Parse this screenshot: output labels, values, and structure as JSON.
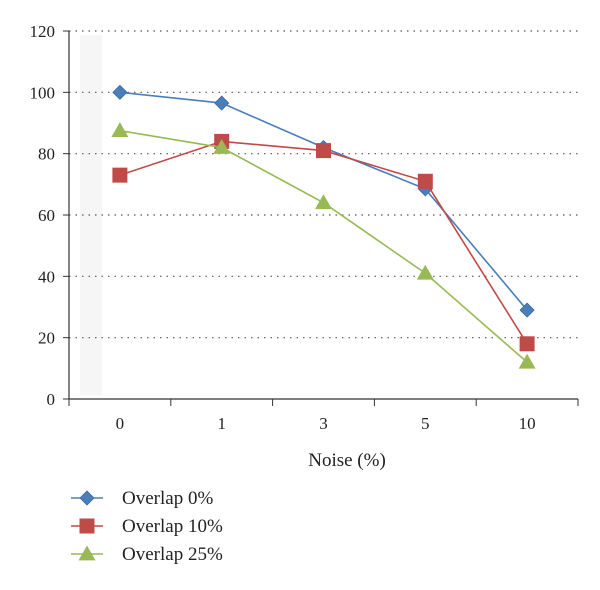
{
  "chart_data": {
    "type": "line",
    "title": "",
    "xlabel": "Noise (%)",
    "ylabel": "",
    "categories": [
      "0",
      "1",
      "3",
      "5",
      "10"
    ],
    "ylim": [
      0,
      120
    ],
    "yticks": [
      0,
      20,
      40,
      60,
      80,
      100,
      120
    ],
    "grid": "horizontal dotted",
    "legend_position": "bottom-left",
    "series": [
      {
        "name": "Overlap 0%",
        "values": [
          100,
          96.5,
          82,
          68.5,
          29
        ],
        "color": "#4a7ebb",
        "marker": "diamond"
      },
      {
        "name": "Overlap 10%",
        "values": [
          73,
          84,
          81,
          71,
          18
        ],
        "color": "#be4b48",
        "marker": "square"
      },
      {
        "name": "Overlap 25%",
        "values": [
          87.5,
          82,
          64,
          41,
          12
        ],
        "color": "#98b954",
        "marker": "triangle"
      }
    ]
  }
}
